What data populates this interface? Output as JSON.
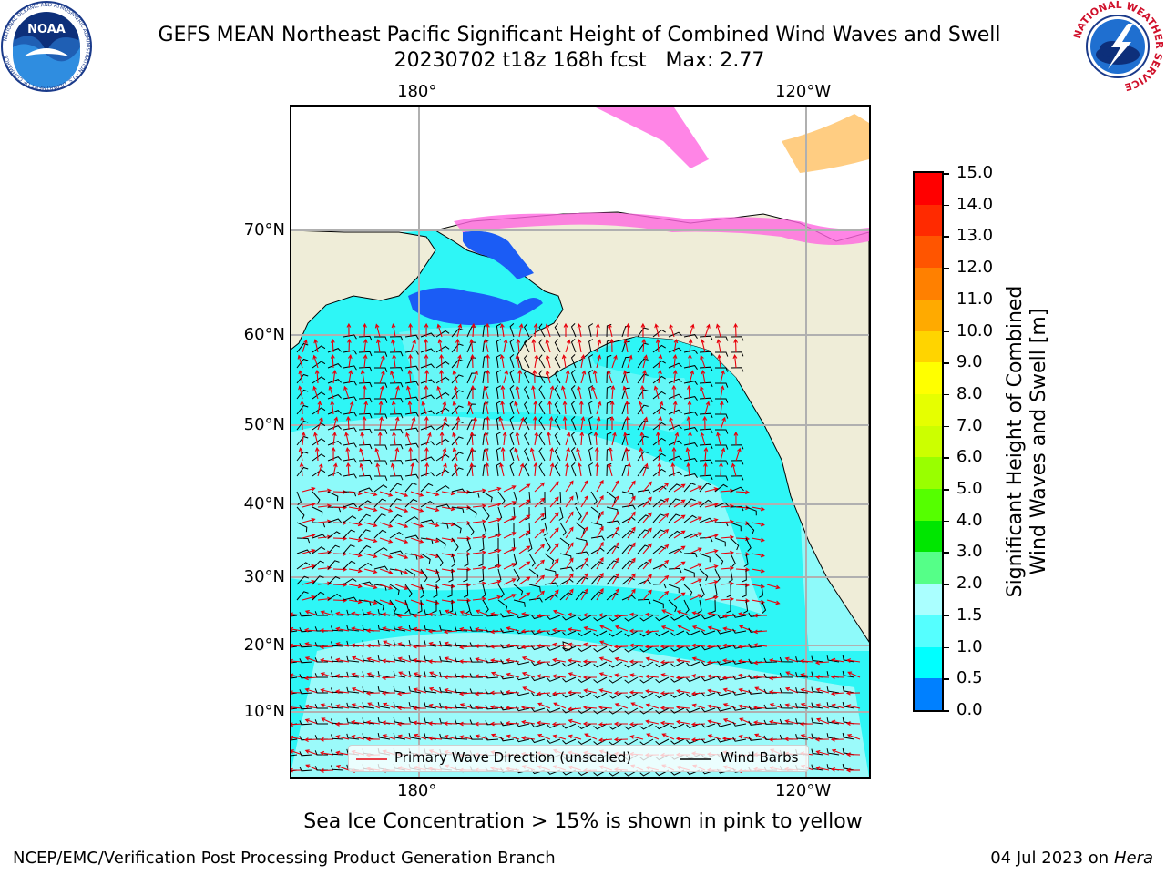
{
  "title": {
    "line1": "GEFS MEAN Northeast Pacific Significant Height of Combined Wind Waves and Swell",
    "line2": "20230702 t18z 168h fcst   Max: 2.77"
  },
  "logos": {
    "noaa_text": "NOAA",
    "noaa_ring": "NATIONAL OCEANIC AND ATMOSPHERIC ADMINISTRATION · U.S. DEPARTMENT OF COMMERCE",
    "nws_ring": "NATIONAL WEATHER SERVICE"
  },
  "map": {
    "lon_labels_top": [
      "180°",
      "120°W"
    ],
    "lon_labels_bottom": [
      "180°",
      "120°W"
    ],
    "lat_labels": [
      "70°N",
      "60°N",
      "50°N",
      "40°N",
      "30°N",
      "20°N",
      "10°N"
    ],
    "colors": {
      "land": "#efedd8",
      "grid": "#b0b0b0",
      "wave_arrow": "#e8000b",
      "wind_barb": "#000000"
    }
  },
  "legend": {
    "wave": "Primary Wave Direction (unscaled)",
    "wind": "Wind Barbs"
  },
  "colorbar": {
    "label": "Significant Height of Combined\nWind Waves and Swell [m]",
    "ticks": [
      "15.0",
      "14.0",
      "13.0",
      "12.0",
      "11.0",
      "10.0",
      "9.0",
      "8.0",
      "7.0",
      "6.0",
      "5.0",
      "4.0",
      "3.0",
      "2.0",
      "1.5",
      "1.0",
      "0.5",
      "0.0"
    ],
    "colors": [
      "#ff0000",
      "#ff2a00",
      "#ff5500",
      "#ff8000",
      "#ffaa00",
      "#ffd400",
      "#ffff00",
      "#e6ff00",
      "#ccff00",
      "#99ff00",
      "#55ff00",
      "#00e600",
      "#55ff88",
      "#aaffff",
      "#55ffff",
      "#00ffff",
      "#0080ff",
      "#0000ff"
    ]
  },
  "subtitle": "Sea Ice Concentration > 15% is shown in pink to yellow",
  "footer": {
    "left": "NCEP/EMC/Verification Post Processing Product Generation Branch",
    "right_prefix": "04 Jul 2023 on ",
    "right_host": "Hera"
  }
}
